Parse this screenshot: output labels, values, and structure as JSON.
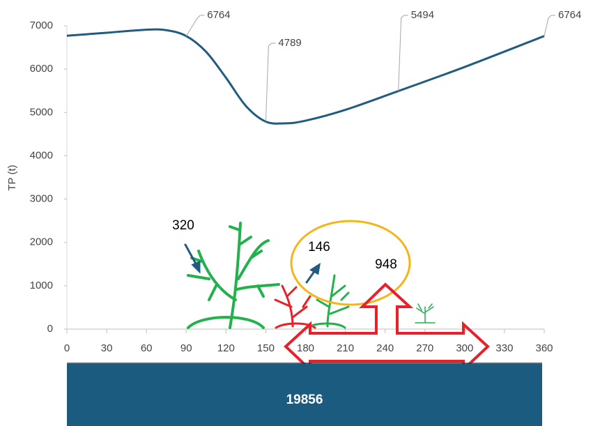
{
  "chart_data": {
    "type": "line",
    "y_label": "TP (t)",
    "x": [
      0,
      30,
      60,
      75,
      90,
      105,
      120,
      135,
      150,
      165,
      180,
      210,
      250,
      300,
      360
    ],
    "series": [
      {
        "name": "TP",
        "color": "#1f5c80",
        "values": [
          6770,
          6840,
          6910,
          6900,
          6764,
          6400,
          5800,
          5150,
          4789,
          4750,
          4810,
          5060,
          5494,
          6050,
          6764
        ]
      }
    ],
    "annotations": [
      {
        "x": 90,
        "value": 6764
      },
      {
        "x": 150,
        "value": 4789
      },
      {
        "x": 250,
        "value": 5494
      },
      {
        "x": 360,
        "value": 6764
      }
    ],
    "xlim": [
      0,
      360
    ],
    "xticks": [
      0,
      30,
      60,
      90,
      120,
      150,
      180,
      210,
      240,
      270,
      300,
      330,
      360
    ],
    "ylim": [
      0,
      7000
    ],
    "yticks": [
      0,
      1000,
      2000,
      3000,
      4000,
      5000,
      6000,
      7000
    ],
    "grid": false,
    "flux_labels": [
      320,
      146,
      948
    ],
    "total_label": 19856
  }
}
